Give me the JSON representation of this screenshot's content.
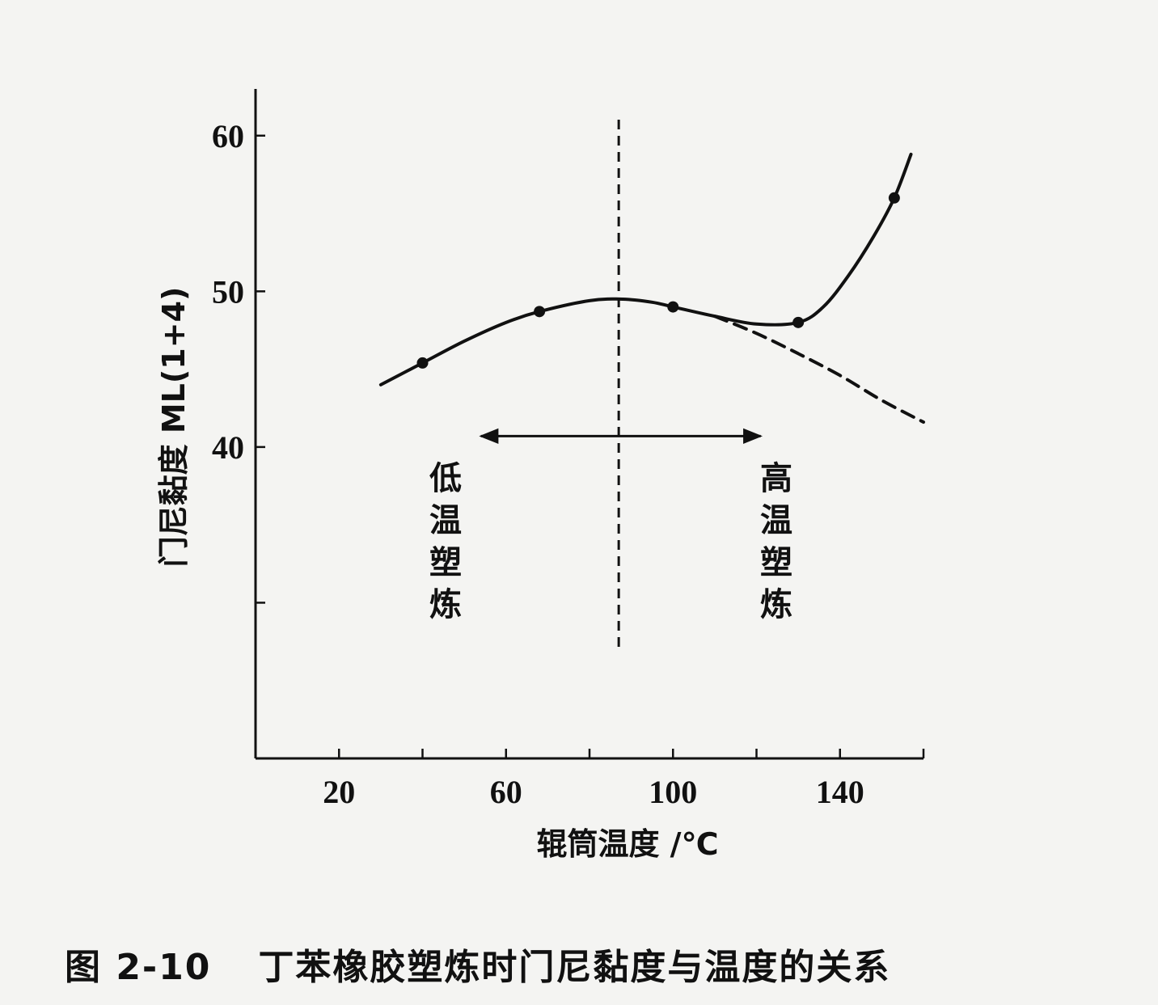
{
  "chart_data": {
    "type": "line",
    "title": "",
    "xlabel": "辊筒温度 /℃",
    "ylabel": "门尼黏度 ML(1+4)",
    "xlim": [
      0,
      160
    ],
    "ylim": [
      20,
      63
    ],
    "x_ticks": [
      20,
      40,
      60,
      80,
      100,
      120,
      140,
      160
    ],
    "x_tick_labels": [
      20,
      60,
      100,
      140
    ],
    "y_ticks": [
      30,
      40,
      50,
      60
    ],
    "y_tick_labels": [
      40,
      50,
      60
    ],
    "series": [
      {
        "style": "solid",
        "x": [
          30,
          40,
          50,
          60,
          68,
          80,
          88,
          95,
          100,
          110,
          120,
          130,
          136,
          142,
          148,
          153,
          157
        ],
        "y": [
          44.0,
          45.4,
          46.8,
          48.0,
          48.7,
          49.4,
          49.5,
          49.3,
          49.0,
          48.4,
          47.9,
          48.0,
          49.0,
          51.0,
          53.5,
          56.0,
          58.8
        ]
      },
      {
        "style": "dashed",
        "x": [
          110,
          120,
          130,
          140,
          150,
          160
        ],
        "y": [
          48.4,
          47.3,
          46.0,
          44.6,
          43.0,
          41.6
        ]
      }
    ],
    "markers": [
      {
        "x": 40,
        "y": 45.4
      },
      {
        "x": 68,
        "y": 48.7
      },
      {
        "x": 100,
        "y": 49.0
      },
      {
        "x": 130,
        "y": 48.0
      },
      {
        "x": 153,
        "y": 56.0
      }
    ],
    "vline": {
      "x": 87,
      "style": "dashed"
    },
    "annotations": {
      "left_label": "低温塑炼",
      "right_label": "高温塑炼"
    },
    "arrow": {
      "x_from": 54,
      "x_to": 121,
      "y": 40.7
    }
  },
  "caption": {
    "figure_number": "图 2-10",
    "text": "丁苯橡胶塑炼时门尼黏度与温度的关系"
  }
}
